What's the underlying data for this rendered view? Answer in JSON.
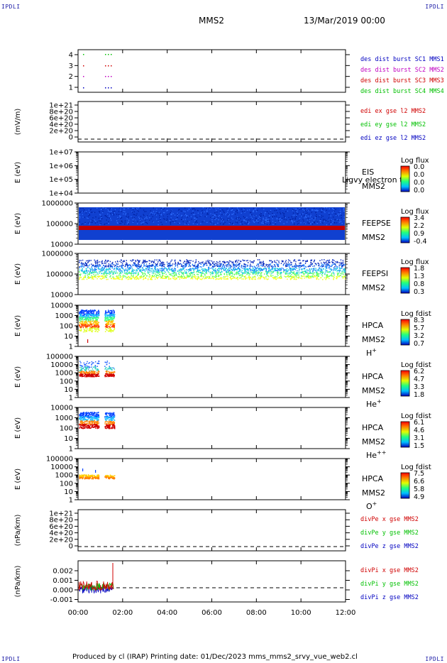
{
  "page": {
    "corner_label": "IPDLI",
    "title": "MMS2",
    "date": "13/Mar/2019 00:00",
    "footer": "Produced by cl (IRAP)    Printing date: 01/Dec/2023    mms_mms2_srvy_vue_web2.cl"
  },
  "chart_data": {
    "type": "multi-panel",
    "x_ticks": [
      "00:00",
      "02:00",
      "04:00",
      "06:00",
      "08:00",
      "10:00",
      "12:00"
    ],
    "x_range_hours": [
      0,
      12
    ],
    "panels": [
      {
        "id": "des-burst",
        "type": "scatter",
        "ylabel": "",
        "ytick_labels": [
          "4",
          "3",
          "2",
          "1"
        ],
        "legend": [
          {
            "name": "des dist burst SC1 MMS1",
            "color": "#0000c0"
          },
          {
            "name": "des dist burst SC2 MMS2",
            "color": "#c000c0"
          },
          {
            "name": "des dist burst SC3 MMS3",
            "color": "#d00000"
          },
          {
            "name": "des dist burst SC4 MMS4",
            "color": "#00c000"
          }
        ]
      },
      {
        "id": "edi",
        "type": "line",
        "ylabel": "(mV/m)",
        "ytick_labels": [
          "1e+21",
          "8e+20",
          "6e+20",
          "4e+20",
          "2e+20",
          "0"
        ],
        "legend": [
          {
            "name": "edi ex gse l2 MMS2",
            "color": "#d00000"
          },
          {
            "name": "edi ey gse l2 MMS2",
            "color": "#00c000"
          },
          {
            "name": "edi ez gse l2 MMS2",
            "color": "#0000c0"
          }
        ]
      },
      {
        "id": "eis",
        "type": "heatmap",
        "ylabel": "E (eV)",
        "ytick_labels": [
          "1e+07",
          "1e+06",
          "1e+05",
          "1e+04"
        ],
        "right": [
          "EIS",
          "MMS2"
        ],
        "overlay": "Ligvy electron to",
        "cb_title": "Log flux",
        "cb_ticks": [
          "0.0",
          "0.0",
          "0.0",
          "0.0"
        ]
      },
      {
        "id": "feepse",
        "type": "heatmap",
        "ylabel": "E (eV)",
        "ytick_labels": [
          "1000000",
          "100000",
          "10000"
        ],
        "right": [
          "FEEPSE",
          "MMS2"
        ],
        "cb_title": "Log flux",
        "cb_ticks": [
          "3.4",
          "2.2",
          "0.9",
          "-0.4"
        ]
      },
      {
        "id": "feepsi",
        "type": "heatmap",
        "ylabel": "E (eV)",
        "ytick_labels": [
          "1000000",
          "100000",
          "10000"
        ],
        "right": [
          "FEEPSI",
          "MMS2"
        ],
        "cb_title": "Log flux",
        "cb_ticks": [
          "1.8",
          "1.3",
          "0.8",
          "0.3"
        ]
      },
      {
        "id": "hpca-h",
        "type": "heatmap",
        "ylabel": "E (eV)",
        "ytick_labels": [
          "10000",
          "1000",
          "100",
          "10",
          "1"
        ],
        "right": [
          "HPCA",
          "MMS2"
        ],
        "species": "H",
        "species_sup": "+",
        "cb_title": "Log fdist",
        "cb_ticks": [
          "8.3",
          "5.7",
          "3.2",
          "0.7"
        ]
      },
      {
        "id": "hpca-he",
        "type": "heatmap",
        "ylabel": "E (eV)",
        "ytick_labels": [
          "100000",
          "10000",
          "1000",
          "100",
          "10",
          "1"
        ],
        "right": [
          "HPCA",
          "MMS2"
        ],
        "species": "He",
        "species_sup": "+",
        "cb_title": "Log fdist",
        "cb_ticks": [
          "6.2",
          "4.7",
          "3.3",
          "1.8"
        ]
      },
      {
        "id": "hpca-he2",
        "type": "heatmap",
        "ylabel": "E (eV)",
        "ytick_labels": [
          "10000",
          "1000",
          "100",
          "10",
          "1"
        ],
        "right": [
          "HPCA",
          "MMS2"
        ],
        "species": "He",
        "species_sup": "++",
        "cb_title": "Log fdist",
        "cb_ticks": [
          "6.1",
          "4.6",
          "3.1",
          "1.5"
        ]
      },
      {
        "id": "hpca-o",
        "type": "heatmap",
        "ylabel": "E (eV)",
        "ytick_labels": [
          "100000",
          "10000",
          "1000",
          "100",
          "10",
          "1"
        ],
        "right": [
          "HPCA",
          "MMS2"
        ],
        "species": "O",
        "species_sup": "+",
        "cb_title": "Log fdist",
        "cb_ticks": [
          "7.5",
          "6.6",
          "5.8",
          "4.9"
        ]
      },
      {
        "id": "divpe",
        "type": "line",
        "ylabel": "(nPa/km)",
        "ytick_labels": [
          "1e+21",
          "8e+20",
          "6e+20",
          "4e+20",
          "2e+20",
          "0"
        ],
        "legend": [
          {
            "name": "divPe x gse MMS2",
            "color": "#d00000"
          },
          {
            "name": "divPe y gse MMS2",
            "color": "#00c000"
          },
          {
            "name": "divPe z gse MMS2",
            "color": "#0000c0"
          }
        ]
      },
      {
        "id": "divpi",
        "type": "line",
        "ylabel": "(nPa/km)",
        "ytick_labels": [
          "0.002",
          "0.001",
          "0.000",
          "-0.001"
        ],
        "legend": [
          {
            "name": "divPi x gse MMS2",
            "color": "#d00000"
          },
          {
            "name": "divPi y gse MMS2",
            "color": "#00c000"
          },
          {
            "name": "divPi z gse MMS2",
            "color": "#0000c0"
          }
        ]
      }
    ]
  }
}
